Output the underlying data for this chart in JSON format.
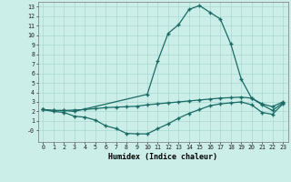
{
  "xlabel": "Humidex (Indice chaleur)",
  "bg_color": "#cceee8",
  "grid_color": "#aad8d2",
  "line_color": "#1a6b65",
  "xlim": [
    -0.5,
    23.5
  ],
  "ylim": [
    -1.2,
    13.5
  ],
  "xticks": [
    0,
    1,
    2,
    3,
    4,
    5,
    6,
    7,
    8,
    9,
    10,
    11,
    12,
    13,
    14,
    15,
    16,
    17,
    18,
    19,
    20,
    21,
    22,
    23
  ],
  "yticks": [
    0,
    1,
    2,
    3,
    4,
    5,
    6,
    7,
    8,
    9,
    10,
    11,
    12,
    13
  ],
  "ytick_labels": [
    "-0",
    "1",
    "2",
    "3",
    "4",
    "5",
    "6",
    "7",
    "8",
    "9",
    "10",
    "11",
    "12",
    "13"
  ],
  "line_max": {
    "x": [
      0,
      1,
      2,
      3,
      10,
      11,
      12,
      13,
      14,
      15,
      16,
      17,
      18,
      19,
      20,
      21,
      22,
      23
    ],
    "y": [
      2.2,
      2.1,
      2.1,
      2.0,
      3.8,
      7.3,
      10.2,
      11.1,
      12.7,
      13.1,
      12.4,
      11.7,
      9.1,
      5.4,
      3.4,
      2.7,
      2.1,
      2.9
    ]
  },
  "line_avg": {
    "x": [
      0,
      1,
      2,
      3,
      4,
      5,
      6,
      7,
      8,
      9,
      10,
      11,
      12,
      13,
      14,
      15,
      16,
      17,
      18,
      19,
      20,
      21,
      22,
      23
    ],
    "y": [
      2.2,
      2.1,
      2.1,
      2.15,
      2.2,
      2.3,
      2.4,
      2.45,
      2.5,
      2.55,
      2.7,
      2.8,
      2.9,
      3.0,
      3.1,
      3.2,
      3.3,
      3.4,
      3.45,
      3.5,
      3.4,
      2.8,
      2.5,
      3.0
    ]
  },
  "line_min": {
    "x": [
      0,
      1,
      2,
      3,
      4,
      5,
      6,
      7,
      8,
      9,
      10,
      11,
      12,
      13,
      14,
      15,
      16,
      17,
      18,
      19,
      20,
      21,
      22,
      23
    ],
    "y": [
      2.2,
      2.0,
      1.9,
      1.5,
      1.4,
      1.1,
      0.5,
      0.2,
      -0.3,
      -0.35,
      -0.35,
      0.2,
      0.7,
      1.3,
      1.8,
      2.2,
      2.6,
      2.8,
      2.9,
      3.0,
      2.7,
      1.9,
      1.7,
      2.8
    ]
  }
}
